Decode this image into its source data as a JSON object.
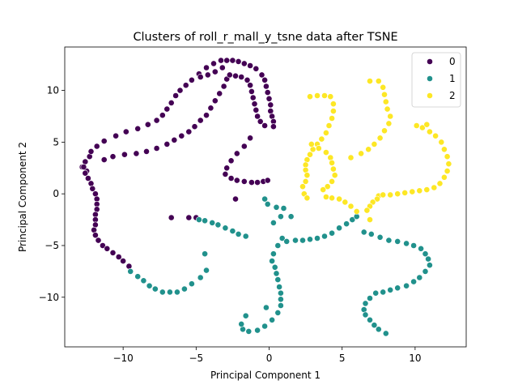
{
  "chart_data": {
    "type": "scatter",
    "title": "Clusters of roll_r_mall_y_tsne data after TSNE",
    "xlabel": "Principal Component 1",
    "ylabel": "Principal Component 2",
    "xlim": [
      -14,
      13.5
    ],
    "ylim": [
      -14.8,
      14.2
    ],
    "xticks": [
      -10,
      -5,
      0,
      5,
      10
    ],
    "xtick_labels": [
      "−10",
      "−5",
      "0",
      "5",
      "10"
    ],
    "yticks": [
      -10,
      -5,
      0,
      5,
      10
    ],
    "ytick_labels": [
      "−10",
      "−5",
      "0",
      "5",
      "10"
    ],
    "grid": false,
    "legend_position": "top-right",
    "series": [
      {
        "name": "0",
        "color": "#440154",
        "points": [
          [
            -12.5,
            2.2
          ],
          [
            -12.8,
            2.6
          ],
          [
            -12.6,
            3.1
          ],
          [
            -12.3,
            3.6
          ],
          [
            -12.2,
            4.1
          ],
          [
            -11.8,
            4.6
          ],
          [
            -11.3,
            5.1
          ],
          [
            -10.5,
            5.6
          ],
          [
            -9.8,
            6.0
          ],
          [
            -9.0,
            6.3
          ],
          [
            -8.3,
            6.7
          ],
          [
            -7.7,
            7.1
          ],
          [
            -7.3,
            7.6
          ],
          [
            -7.0,
            8.2
          ],
          [
            -6.7,
            8.8
          ],
          [
            -6.4,
            9.5
          ],
          [
            -6.1,
            10.0
          ],
          [
            -5.7,
            10.5
          ],
          [
            -5.3,
            11.0
          ],
          [
            -4.8,
            11.6
          ],
          [
            -4.3,
            12.2
          ],
          [
            -3.8,
            12.6
          ],
          [
            -3.3,
            12.9
          ],
          [
            -2.9,
            12.9
          ],
          [
            -2.5,
            12.9
          ],
          [
            -2.1,
            12.8
          ],
          [
            -1.7,
            12.6
          ],
          [
            -1.3,
            12.4
          ],
          [
            -0.9,
            12.1
          ],
          [
            -0.5,
            11.5
          ],
          [
            -0.3,
            11.0
          ],
          [
            -0.2,
            10.4
          ],
          [
            -0.1,
            9.8
          ],
          [
            0.0,
            9.2
          ],
          [
            0.1,
            8.6
          ],
          [
            0.1,
            8.0
          ],
          [
            0.2,
            7.5
          ],
          [
            0.3,
            7.0
          ],
          [
            0.3,
            6.5
          ],
          [
            -12.7,
            2.6
          ],
          [
            -12.6,
            2.0
          ],
          [
            -12.4,
            1.5
          ],
          [
            -12.2,
            1.0
          ],
          [
            -12.1,
            0.5
          ],
          [
            -11.9,
            0.0
          ],
          [
            -11.8,
            -0.5
          ],
          [
            -11.8,
            -1.0
          ],
          [
            -11.8,
            -1.5
          ],
          [
            -11.9,
            -2.0
          ],
          [
            -11.9,
            -2.5
          ],
          [
            -11.9,
            -3.0
          ],
          [
            -12.0,
            -3.5
          ],
          [
            -11.9,
            -4.0
          ],
          [
            -11.7,
            -4.5
          ],
          [
            -11.4,
            -5.0
          ],
          [
            -11.1,
            -5.3
          ],
          [
            -10.7,
            -5.7
          ],
          [
            -10.3,
            -6.1
          ],
          [
            -10.0,
            -6.5
          ],
          [
            -9.6,
            -7.0
          ],
          [
            -11.3,
            3.3
          ],
          [
            -10.7,
            3.6
          ],
          [
            -9.9,
            3.8
          ],
          [
            -9.1,
            3.9
          ],
          [
            -8.4,
            4.1
          ],
          [
            -7.7,
            4.4
          ],
          [
            -7.0,
            4.8
          ],
          [
            -6.5,
            5.2
          ],
          [
            -6.0,
            5.6
          ],
          [
            -5.5,
            6.0
          ],
          [
            -5.1,
            6.5
          ],
          [
            -4.7,
            7.1
          ],
          [
            -4.3,
            7.6
          ],
          [
            -4.0,
            8.3
          ],
          [
            -3.7,
            9.0
          ],
          [
            -3.4,
            9.7
          ],
          [
            -3.1,
            10.4
          ],
          [
            -2.9,
            11.1
          ],
          [
            -2.7,
            11.5
          ],
          [
            -2.3,
            11.4
          ],
          [
            -1.9,
            11.3
          ],
          [
            -1.5,
            11.0
          ],
          [
            -1.3,
            10.5
          ],
          [
            -1.2,
            9.9
          ],
          [
            -1.1,
            9.3
          ],
          [
            -1.0,
            8.7
          ],
          [
            -0.9,
            8.1
          ],
          [
            -0.8,
            7.5
          ],
          [
            -0.6,
            7.0
          ],
          [
            -0.3,
            6.6
          ],
          [
            -3.2,
            12.2
          ],
          [
            -3.7,
            11.8
          ],
          [
            -4.2,
            11.5
          ],
          [
            -4.7,
            11.3
          ],
          [
            -1.3,
            5.4
          ],
          [
            -1.7,
            4.6
          ],
          [
            -2.2,
            3.9
          ],
          [
            -2.6,
            3.2
          ],
          [
            -2.9,
            2.5
          ],
          [
            -3.0,
            1.9
          ],
          [
            -2.6,
            1.5
          ],
          [
            -2.2,
            1.3
          ],
          [
            -1.7,
            1.2
          ],
          [
            -1.2,
            1.1
          ],
          [
            -0.8,
            1.1
          ],
          [
            -0.4,
            1.2
          ],
          [
            -0.1,
            1.3
          ],
          [
            -2.3,
            -0.5
          ],
          [
            -6.7,
            -2.3
          ],
          [
            -5.5,
            -2.3
          ],
          [
            -5.0,
            -2.3
          ]
        ]
      },
      {
        "name": "1",
        "color": "#21918c",
        "points": [
          [
            -4.8,
            -2.5
          ],
          [
            -4.4,
            -2.6
          ],
          [
            -3.9,
            -2.8
          ],
          [
            -3.5,
            -3.0
          ],
          [
            -3.0,
            -3.3
          ],
          [
            -2.5,
            -3.6
          ],
          [
            -2.1,
            -3.9
          ],
          [
            -1.6,
            -4.1
          ],
          [
            -0.3,
            -0.5
          ],
          [
            -0.1,
            -1.0
          ],
          [
            0.5,
            -1.3
          ],
          [
            1.0,
            -1.4
          ],
          [
            0.8,
            -2.2
          ],
          [
            0.3,
            -2.8
          ],
          [
            1.5,
            -2.2
          ],
          [
            0.9,
            -4.3
          ],
          [
            1.2,
            -4.6
          ],
          [
            1.8,
            -4.5
          ],
          [
            2.3,
            -4.5
          ],
          [
            2.8,
            -4.4
          ],
          [
            3.3,
            -4.3
          ],
          [
            3.8,
            -4.1
          ],
          [
            4.3,
            -3.8
          ],
          [
            4.8,
            -3.3
          ],
          [
            5.3,
            -2.9
          ],
          [
            5.7,
            -2.5
          ],
          [
            6.0,
            -2.2
          ],
          [
            0.6,
            -5.0
          ],
          [
            0.3,
            -5.8
          ],
          [
            0.2,
            -6.5
          ],
          [
            0.4,
            -7.1
          ],
          [
            0.5,
            -7.7
          ],
          [
            0.6,
            -8.3
          ],
          [
            0.7,
            -9.0
          ],
          [
            0.8,
            -9.6
          ],
          [
            0.8,
            -10.2
          ],
          [
            0.8,
            -10.8
          ],
          [
            0.6,
            -11.5
          ],
          [
            0.2,
            -12.2
          ],
          [
            -0.3,
            -12.8
          ],
          [
            -0.8,
            -13.2
          ],
          [
            -1.4,
            -13.3
          ],
          [
            -1.8,
            -13.1
          ],
          [
            -1.9,
            -12.6
          ],
          [
            -1.6,
            -11.8
          ],
          [
            -0.2,
            -11.0
          ],
          [
            -9.5,
            -7.5
          ],
          [
            -9.0,
            -8.0
          ],
          [
            -8.6,
            -8.4
          ],
          [
            -8.2,
            -8.9
          ],
          [
            -7.8,
            -9.2
          ],
          [
            -7.3,
            -9.5
          ],
          [
            -6.8,
            -9.5
          ],
          [
            -6.3,
            -9.5
          ],
          [
            -5.8,
            -9.2
          ],
          [
            -5.3,
            -8.7
          ],
          [
            -4.7,
            -8.1
          ],
          [
            -4.3,
            -7.4
          ],
          [
            -4.4,
            -5.8
          ],
          [
            6.5,
            -3.7
          ],
          [
            7.0,
            -3.9
          ],
          [
            7.6,
            -4.2
          ],
          [
            8.2,
            -4.5
          ],
          [
            8.8,
            -4.6
          ],
          [
            9.4,
            -4.8
          ],
          [
            9.9,
            -5.0
          ],
          [
            10.4,
            -5.3
          ],
          [
            10.7,
            -5.8
          ],
          [
            10.9,
            -6.3
          ],
          [
            11.0,
            -6.9
          ],
          [
            10.7,
            -7.5
          ],
          [
            10.3,
            -8.1
          ],
          [
            9.9,
            -8.5
          ],
          [
            9.4,
            -8.9
          ],
          [
            8.8,
            -9.1
          ],
          [
            8.3,
            -9.3
          ],
          [
            7.8,
            -9.5
          ],
          [
            7.3,
            -9.6
          ],
          [
            6.9,
            -10.1
          ],
          [
            6.6,
            -10.6
          ],
          [
            6.5,
            -11.2
          ],
          [
            6.6,
            -11.7
          ],
          [
            6.9,
            -12.2
          ],
          [
            7.2,
            -12.7
          ],
          [
            7.5,
            -13.1
          ],
          [
            8.0,
            -13.5
          ]
        ]
      },
      {
        "name": "2",
        "color": "#fde725",
        "points": [
          [
            2.8,
            9.4
          ],
          [
            3.3,
            9.5
          ],
          [
            3.8,
            9.5
          ],
          [
            4.2,
            9.4
          ],
          [
            4.4,
            8.7
          ],
          [
            4.4,
            8.0
          ],
          [
            4.3,
            7.3
          ],
          [
            4.1,
            6.6
          ],
          [
            3.9,
            5.9
          ],
          [
            3.6,
            5.3
          ],
          [
            3.3,
            4.8
          ],
          [
            3.0,
            4.3
          ],
          [
            2.8,
            3.8
          ],
          [
            2.6,
            3.3
          ],
          [
            2.5,
            2.8
          ],
          [
            2.5,
            2.3
          ],
          [
            2.6,
            1.8
          ],
          [
            2.5,
            1.2
          ],
          [
            2.3,
            0.7
          ],
          [
            2.4,
            0.0
          ],
          [
            2.6,
            -0.4
          ],
          [
            2.9,
            4.8
          ],
          [
            3.4,
            4.4
          ],
          [
            3.9,
            4.0
          ],
          [
            4.2,
            3.5
          ],
          [
            4.3,
            3.0
          ],
          [
            4.4,
            2.4
          ],
          [
            4.5,
            1.8
          ],
          [
            4.3,
            1.2
          ],
          [
            4.0,
            0.7
          ],
          [
            3.7,
            0.4
          ],
          [
            3.9,
            -0.3
          ],
          [
            4.3,
            -0.4
          ],
          [
            4.8,
            -0.5
          ],
          [
            5.2,
            -0.8
          ],
          [
            5.6,
            -1.2
          ],
          [
            6.0,
            -1.7
          ],
          [
            6.9,
            10.9
          ],
          [
            7.5,
            10.9
          ],
          [
            7.8,
            10.3
          ],
          [
            7.9,
            9.6
          ],
          [
            8.0,
            8.9
          ],
          [
            8.1,
            8.2
          ],
          [
            8.3,
            7.5
          ],
          [
            8.2,
            6.8
          ],
          [
            7.9,
            6.1
          ],
          [
            7.6,
            5.4
          ],
          [
            7.2,
            4.8
          ],
          [
            6.8,
            4.3
          ],
          [
            6.3,
            3.9
          ],
          [
            5.6,
            3.5
          ],
          [
            7.5,
            -0.2
          ],
          [
            7.4,
            -0.5
          ],
          [
            7.1,
            -0.8
          ],
          [
            6.9,
            -1.2
          ],
          [
            6.7,
            -1.6
          ],
          [
            6.9,
            -2.5
          ],
          [
            7.8,
            -0.1
          ],
          [
            8.3,
            -0.1
          ],
          [
            8.8,
            0.0
          ],
          [
            9.3,
            0.1
          ],
          [
            9.8,
            0.2
          ],
          [
            10.3,
            0.3
          ],
          [
            10.8,
            0.4
          ],
          [
            11.3,
            0.6
          ],
          [
            11.7,
            1.0
          ],
          [
            12.0,
            1.6
          ],
          [
            12.2,
            2.2
          ],
          [
            12.3,
            2.9
          ],
          [
            12.2,
            3.6
          ],
          [
            12.0,
            4.3
          ],
          [
            11.8,
            5.0
          ],
          [
            11.4,
            5.6
          ],
          [
            11.0,
            6.0
          ],
          [
            10.5,
            6.4
          ],
          [
            10.1,
            6.6
          ],
          [
            10.8,
            6.7
          ]
        ]
      }
    ]
  }
}
